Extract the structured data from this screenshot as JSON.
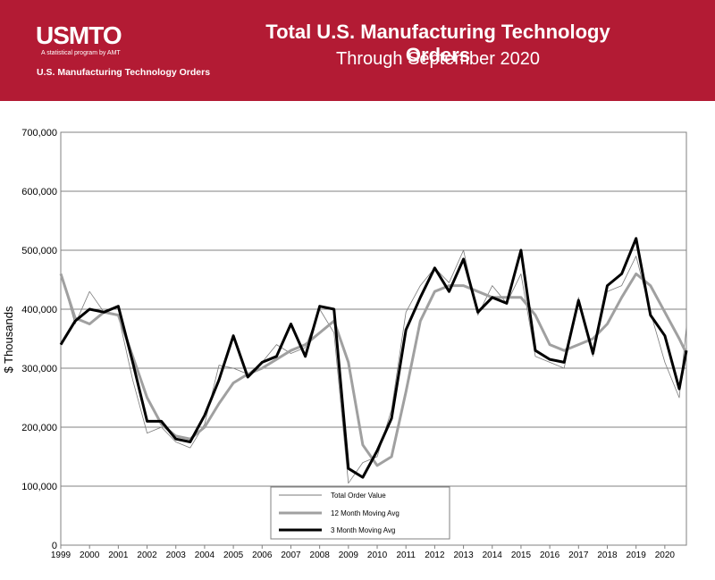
{
  "header": {
    "logo_text": "USMTO",
    "logo_tagline": "A statistical program by AMT",
    "logo_subtitle": "U.S. Manufacturing Technology Orders",
    "title": "Total U.S. Manufacturing Technology Orders",
    "subtitle": "Through September 2020"
  },
  "colors": {
    "banner": "#b31b34",
    "raw": "#7a7a7a",
    "ma12": "#a0a0a0",
    "ma3": "#000000"
  },
  "chart_data": {
    "type": "line",
    "title": "Total U.S. Manufacturing Technology Orders",
    "subtitle": "Through September 2020",
    "xlabel": "",
    "ylabel": "$ Thousands",
    "xlim": [
      1999,
      2020.75
    ],
    "ylim": [
      0,
      700000
    ],
    "grid": true,
    "legend_position": "bottom-center",
    "yticks": [
      "0",
      "100,000",
      "200,000",
      "300,000",
      "400,000",
      "500,000",
      "600,000",
      "700,000"
    ],
    "xticks": [
      "1999",
      "2000",
      "2001",
      "2002",
      "2003",
      "2004",
      "2005",
      "2006",
      "2007",
      "2008",
      "2009",
      "2010",
      "2011",
      "2012",
      "2013",
      "2014",
      "2015",
      "2016",
      "2017",
      "2018",
      "2019",
      "2020"
    ],
    "series": [
      {
        "name": "Total Order Value",
        "x": [
          1999.0,
          1999.5,
          2000.0,
          2000.5,
          2001.0,
          2001.5,
          2002.0,
          2002.5,
          2003.0,
          2003.5,
          2004.0,
          2004.5,
          2005.0,
          2005.5,
          2006.0,
          2006.5,
          2007.0,
          2007.5,
          2008.0,
          2008.5,
          2009.0,
          2009.5,
          2010.0,
          2010.5,
          2011.0,
          2011.5,
          2012.0,
          2012.5,
          2013.0,
          2013.5,
          2014.0,
          2014.5,
          2015.0,
          2015.5,
          2016.0,
          2016.5,
          2017.0,
          2017.5,
          2018.0,
          2018.5,
          2019.0,
          2019.5,
          2020.0,
          2020.5,
          2020.75
        ],
        "values": [
          460000,
          375000,
          430000,
          395000,
          390000,
          280000,
          190000,
          200000,
          175000,
          165000,
          205000,
          305000,
          300000,
          290000,
          310000,
          340000,
          325000,
          335000,
          400000,
          360000,
          105000,
          140000,
          150000,
          230000,
          395000,
          440000,
          470000,
          445000,
          500000,
          390000,
          440000,
          410000,
          460000,
          320000,
          310000,
          300000,
          420000,
          320000,
          430000,
          440000,
          490000,
          395000,
          310000,
          250000,
          370000
        ]
      },
      {
        "name": "12 Month Moving Avg",
        "x": [
          1999.0,
          1999.5,
          2000.0,
          2000.5,
          2001.0,
          2001.5,
          2002.0,
          2002.5,
          2003.0,
          2003.5,
          2004.0,
          2004.5,
          2005.0,
          2005.5,
          2006.0,
          2006.5,
          2007.0,
          2007.5,
          2008.0,
          2008.5,
          2009.0,
          2009.5,
          2010.0,
          2010.5,
          2011.0,
          2011.5,
          2012.0,
          2012.5,
          2013.0,
          2013.5,
          2014.0,
          2014.5,
          2015.0,
          2015.5,
          2016.0,
          2016.5,
          2017.0,
          2017.5,
          2018.0,
          2018.5,
          2019.0,
          2019.5,
          2020.0,
          2020.5,
          2020.75
        ],
        "values": [
          460000,
          385000,
          375000,
          395000,
          390000,
          320000,
          250000,
          205000,
          185000,
          180000,
          200000,
          240000,
          275000,
          290000,
          300000,
          315000,
          330000,
          340000,
          360000,
          380000,
          310000,
          170000,
          135000,
          150000,
          260000,
          380000,
          430000,
          440000,
          440000,
          430000,
          420000,
          420000,
          420000,
          390000,
          340000,
          330000,
          340000,
          350000,
          375000,
          420000,
          460000,
          440000,
          395000,
          350000,
          325000
        ]
      },
      {
        "name": "3 Month Moving Avg",
        "x": [
          1999.0,
          1999.5,
          2000.0,
          2000.5,
          2001.0,
          2001.5,
          2002.0,
          2002.5,
          2003.0,
          2003.5,
          2004.0,
          2004.5,
          2005.0,
          2005.5,
          2006.0,
          2006.5,
          2007.0,
          2007.5,
          2008.0,
          2008.5,
          2009.0,
          2009.5,
          2010.0,
          2010.5,
          2011.0,
          2011.5,
          2012.0,
          2012.5,
          2013.0,
          2013.5,
          2014.0,
          2014.5,
          2015.0,
          2015.5,
          2016.0,
          2016.5,
          2017.0,
          2017.5,
          2018.0,
          2018.5,
          2019.0,
          2019.5,
          2020.0,
          2020.5,
          2020.75
        ],
        "values": [
          340000,
          380000,
          400000,
          395000,
          405000,
          310000,
          210000,
          210000,
          180000,
          175000,
          220000,
          280000,
          355000,
          285000,
          310000,
          320000,
          375000,
          320000,
          405000,
          400000,
          130000,
          115000,
          160000,
          215000,
          365000,
          420000,
          470000,
          430000,
          485000,
          395000,
          420000,
          410000,
          500000,
          330000,
          315000,
          310000,
          415000,
          325000,
          440000,
          460000,
          520000,
          390000,
          355000,
          265000,
          330000
        ]
      }
    ]
  }
}
